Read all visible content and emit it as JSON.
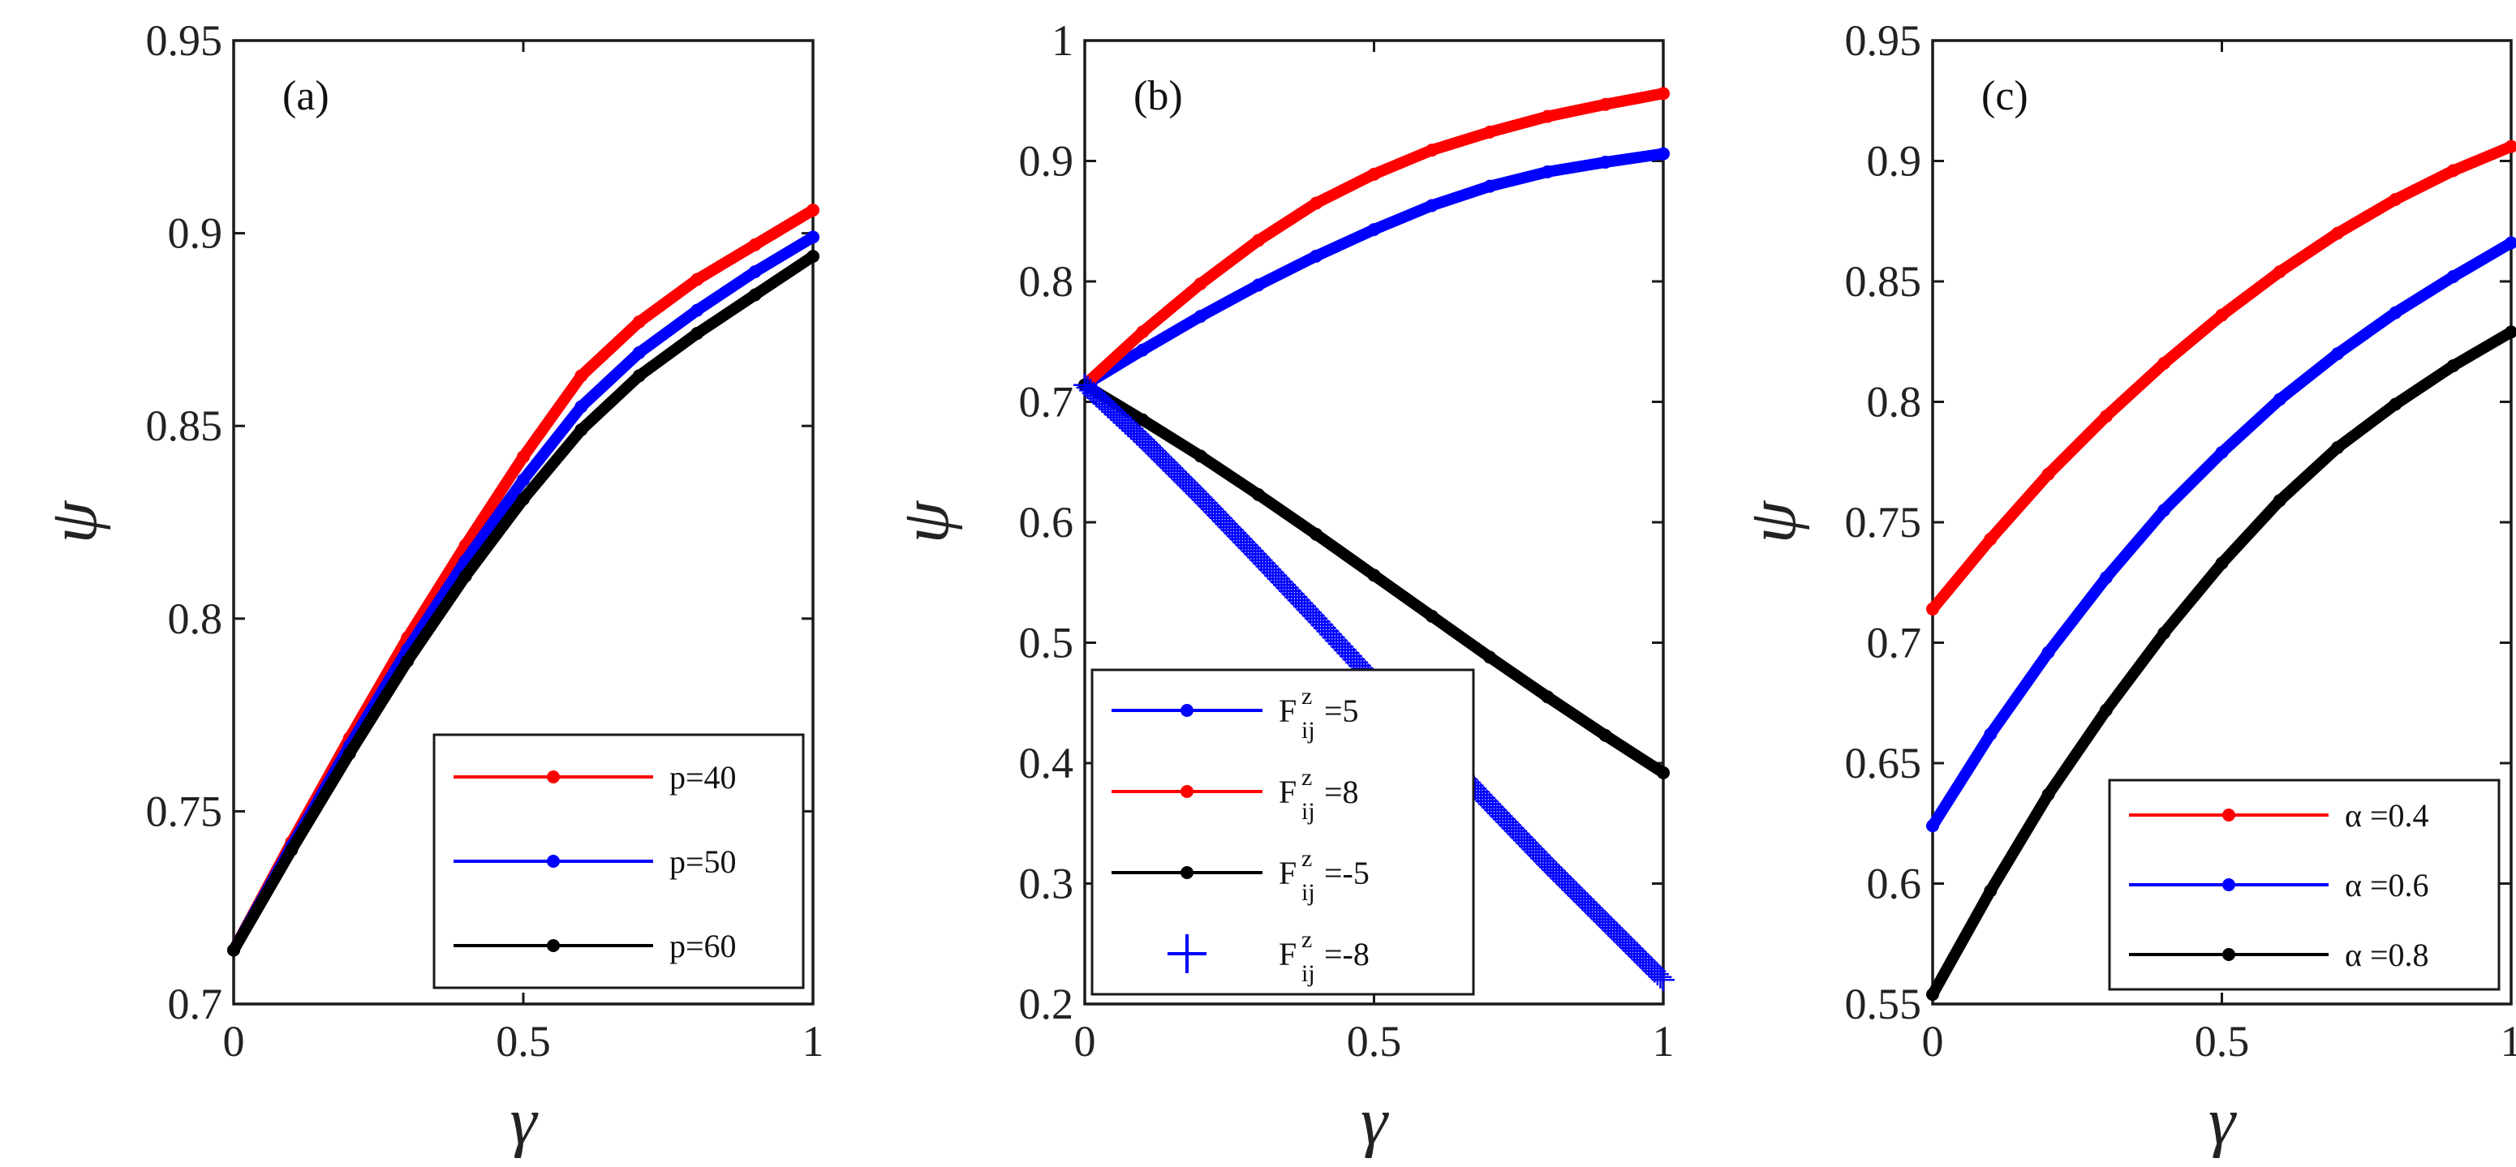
{
  "chart_data": [
    {
      "type": "line",
      "panel_label": "(a)",
      "xlabel": "γ",
      "ylabel": "ψ",
      "xlim": [
        0,
        1
      ],
      "ylim": [
        0.7,
        0.95
      ],
      "xticks": [
        "0",
        "0.5",
        "1"
      ],
      "yticks": [
        "0.7",
        "0.75",
        "0.8",
        "0.85",
        "0.9",
        "0.95"
      ],
      "legend_position": "bottom-right",
      "series": [
        {
          "name": "p=40",
          "color": "#ff0000",
          "marker": "dot",
          "x": [
            0,
            0.1,
            0.2,
            0.3,
            0.4,
            0.5,
            0.6,
            0.7,
            0.8,
            0.9,
            1.0
          ],
          "y": [
            0.714,
            0.742,
            0.769,
            0.795,
            0.819,
            0.842,
            0.863,
            0.877,
            0.888,
            0.897,
            0.906
          ]
        },
        {
          "name": "p=50",
          "color": "#0000ff",
          "marker": "dot",
          "x": [
            0,
            0.1,
            0.2,
            0.3,
            0.4,
            0.5,
            0.6,
            0.7,
            0.8,
            0.9,
            1.0
          ],
          "y": [
            0.714,
            0.741,
            0.767,
            0.792,
            0.815,
            0.836,
            0.855,
            0.869,
            0.88,
            0.89,
            0.899
          ]
        },
        {
          "name": "p=60",
          "color": "#000000",
          "marker": "dot",
          "x": [
            0,
            0.1,
            0.2,
            0.3,
            0.4,
            0.5,
            0.6,
            0.7,
            0.8,
            0.9,
            1.0
          ],
          "y": [
            0.714,
            0.74,
            0.765,
            0.789,
            0.811,
            0.831,
            0.849,
            0.863,
            0.874,
            0.884,
            0.894
          ]
        }
      ]
    },
    {
      "type": "line",
      "panel_label": "(b)",
      "xlabel": "γ",
      "ylabel": "ψ",
      "xlim": [
        0,
        1
      ],
      "ylim": [
        0.2,
        1
      ],
      "xticks": [
        "0",
        "0.5",
        "1"
      ],
      "yticks": [
        "0.2",
        "0.3",
        "0.4",
        "0.5",
        "0.6",
        "0.7",
        "0.8",
        "0.9",
        "1"
      ],
      "legend_position": "bottom-left",
      "series": [
        {
          "name": "F=5",
          "legend_main": "F",
          "legend_sup": "z",
          "legend_sub": "ij",
          "legend_value": "=5",
          "color": "#0000ff",
          "marker": "dot",
          "x": [
            0,
            0.1,
            0.2,
            0.3,
            0.4,
            0.5,
            0.6,
            0.7,
            0.8,
            0.9,
            1.0
          ],
          "y": [
            0.714,
            0.743,
            0.771,
            0.797,
            0.821,
            0.843,
            0.863,
            0.879,
            0.891,
            0.899,
            0.906
          ]
        },
        {
          "name": "F=8",
          "legend_main": "F",
          "legend_sup": "z",
          "legend_sub": "ij",
          "legend_value": "=8",
          "color": "#ff0000",
          "marker": "dot",
          "x": [
            0,
            0.1,
            0.2,
            0.3,
            0.4,
            0.5,
            0.6,
            0.7,
            0.8,
            0.9,
            1.0
          ],
          "y": [
            0.714,
            0.758,
            0.798,
            0.834,
            0.865,
            0.889,
            0.909,
            0.924,
            0.937,
            0.947,
            0.956
          ]
        },
        {
          "name": "F=-5",
          "legend_main": "F",
          "legend_sup": "z",
          "legend_sub": "ij",
          "legend_value": "=-5",
          "color": "#000000",
          "marker": "dot",
          "x": [
            0,
            0.1,
            0.2,
            0.3,
            0.4,
            0.5,
            0.6,
            0.7,
            0.8,
            0.9,
            1.0
          ],
          "y": [
            0.714,
            0.685,
            0.655,
            0.623,
            0.59,
            0.556,
            0.522,
            0.488,
            0.455,
            0.423,
            0.392
          ]
        },
        {
          "name": "F=-8",
          "legend_main": "F",
          "legend_sup": "z",
          "legend_sub": "ij",
          "legend_value": "=-8",
          "color": "#0000ff",
          "marker": "plus",
          "x": [
            0,
            0.1,
            0.2,
            0.3,
            0.4,
            0.5,
            0.6,
            0.7,
            0.8,
            0.9,
            1.0
          ],
          "y": [
            0.714,
            0.669,
            0.621,
            0.571,
            0.52,
            0.468,
            0.417,
            0.366,
            0.316,
            0.268,
            0.22
          ]
        }
      ]
    },
    {
      "type": "line",
      "panel_label": "(c)",
      "xlabel": "γ",
      "ylabel": "ψ",
      "xlim": [
        0,
        1
      ],
      "ylim": [
        0.55,
        0.95
      ],
      "xticks": [
        "0",
        "0.5",
        "1"
      ],
      "yticks": [
        "0.55",
        "0.6",
        "0.65",
        "0.7",
        "0.75",
        "0.8",
        "0.85",
        "0.9",
        "0.95"
      ],
      "legend_position": "bottom-right",
      "series": [
        {
          "name": "α =0.4",
          "color": "#ff0000",
          "marker": "dot",
          "x": [
            0,
            0.1,
            0.2,
            0.3,
            0.4,
            0.5,
            0.6,
            0.7,
            0.8,
            0.9,
            1.0
          ],
          "y": [
            0.714,
            0.743,
            0.77,
            0.794,
            0.816,
            0.836,
            0.854,
            0.87,
            0.884,
            0.896,
            0.906
          ]
        },
        {
          "name": "α =0.6",
          "color": "#0000ff",
          "marker": "dot",
          "x": [
            0,
            0.1,
            0.2,
            0.3,
            0.4,
            0.5,
            0.6,
            0.7,
            0.8,
            0.9,
            1.0
          ],
          "y": [
            0.624,
            0.662,
            0.696,
            0.727,
            0.755,
            0.779,
            0.801,
            0.82,
            0.837,
            0.852,
            0.866
          ]
        },
        {
          "name": "α =0.8",
          "color": "#000000",
          "marker": "dot",
          "x": [
            0,
            0.1,
            0.2,
            0.3,
            0.4,
            0.5,
            0.6,
            0.7,
            0.8,
            0.9,
            1.0
          ],
          "y": [
            0.554,
            0.597,
            0.637,
            0.672,
            0.704,
            0.733,
            0.759,
            0.781,
            0.799,
            0.815,
            0.829
          ]
        }
      ]
    }
  ]
}
